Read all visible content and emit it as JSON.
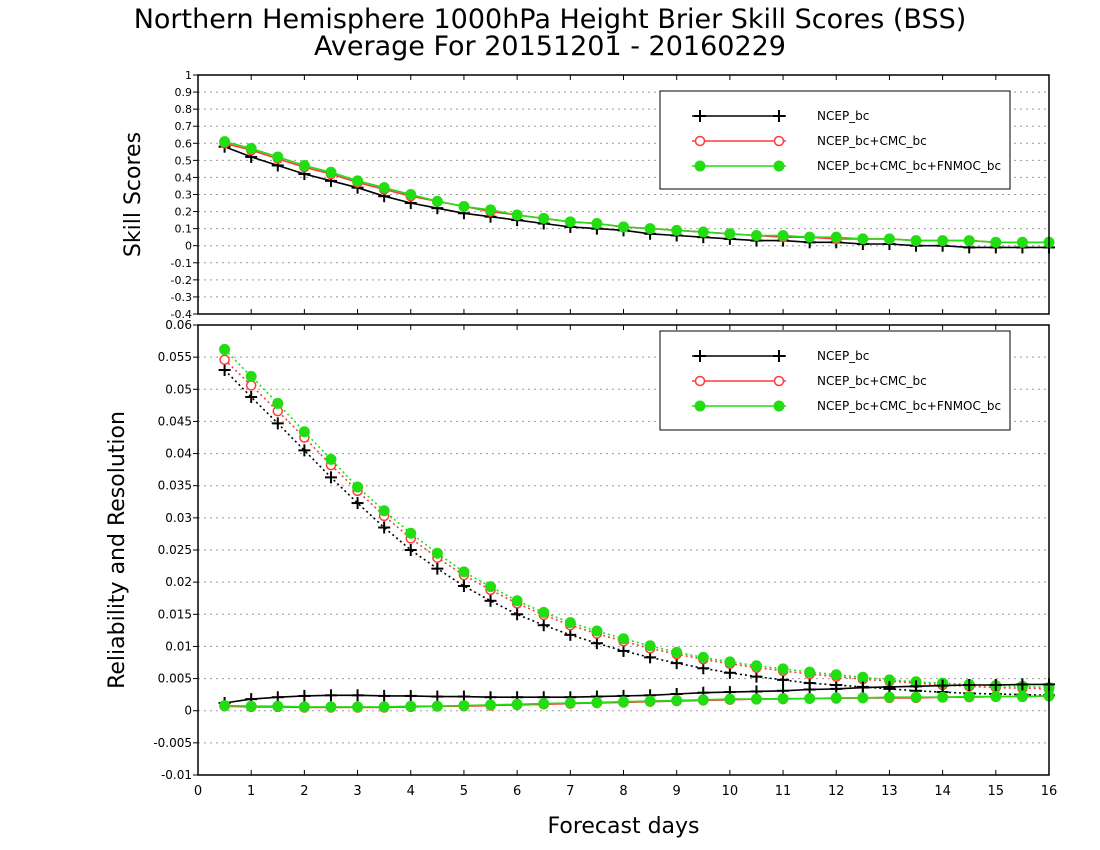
{
  "figure": {
    "title_line1": "Northern Hemisphere 1000hPa Height Brier Skill Scores (BSS)",
    "title_line2": "Average For 20151201 - 20160229",
    "xlabel": "Forecast days"
  },
  "colors": {
    "NCEP_bc": "#000000",
    "NCEP_bc+CMC_bc": "#ff3a3a",
    "NCEP_bc+CMC_bc+FNMOC_bc": "#22dd11"
  },
  "chart_data": [
    {
      "type": "line",
      "ylabel": "Skill Scores",
      "xlim": [
        0,
        16
      ],
      "ylim": [
        -0.4,
        1
      ],
      "xticks": [
        0,
        1,
        2,
        3,
        4,
        5,
        6,
        7,
        8,
        9,
        10,
        11,
        12,
        13,
        14,
        15,
        16
      ],
      "yticks": [
        -0.4,
        -0.3,
        -0.2,
        -0.1,
        0,
        0.1,
        0.2,
        0.3,
        0.4,
        0.5,
        0.6,
        0.7,
        0.8,
        0.9,
        1
      ],
      "ytick_labels": [
        "-0.4",
        "-0.3",
        "-0.2",
        "-0.1",
        "0",
        "0.1",
        "0.2",
        "0.3",
        "0.4",
        "0.5",
        "0.6",
        "0.7",
        "0.8",
        "0.9",
        "1"
      ],
      "grid": true,
      "legend_position": "top-right",
      "x": [
        0.5,
        1,
        1.5,
        2,
        2.5,
        3,
        3.5,
        4,
        4.5,
        5,
        5.5,
        6,
        6.5,
        7,
        7.5,
        8,
        8.5,
        9,
        9.5,
        10,
        10.5,
        11,
        11.5,
        12,
        12.5,
        13,
        13.5,
        14,
        14.5,
        15,
        15.5,
        16
      ],
      "series": [
        {
          "name": "NCEP_bc",
          "style": "solid",
          "marker": "plus",
          "values": [
            0.58,
            0.52,
            0.47,
            0.42,
            0.38,
            0.34,
            0.29,
            0.25,
            0.22,
            0.19,
            0.17,
            0.15,
            0.13,
            0.11,
            0.1,
            0.09,
            0.07,
            0.06,
            0.05,
            0.04,
            0.03,
            0.03,
            0.02,
            0.02,
            0.01,
            0.01,
            0.0,
            0.0,
            -0.01,
            -0.01,
            -0.01,
            -0.01
          ]
        },
        {
          "name": "NCEP_bc+CMC_bc",
          "style": "solid",
          "marker": "open-circle",
          "values": [
            0.6,
            0.56,
            0.51,
            0.46,
            0.42,
            0.37,
            0.33,
            0.29,
            0.26,
            0.23,
            0.2,
            0.18,
            0.16,
            0.14,
            0.13,
            0.11,
            0.1,
            0.09,
            0.08,
            0.07,
            0.06,
            0.05,
            0.05,
            0.04,
            0.04,
            0.04,
            0.03,
            0.03,
            0.03,
            0.02,
            0.02,
            0.02
          ]
        },
        {
          "name": "NCEP_bc+CMC_bc+FNMOC_bc",
          "style": "solid",
          "marker": "filled-circle",
          "values": [
            0.61,
            0.57,
            0.52,
            0.47,
            0.43,
            0.38,
            0.34,
            0.3,
            0.26,
            0.23,
            0.21,
            0.18,
            0.16,
            0.14,
            0.13,
            0.11,
            0.1,
            0.09,
            0.08,
            0.07,
            0.06,
            0.06,
            0.05,
            0.05,
            0.04,
            0.04,
            0.03,
            0.03,
            0.03,
            0.02,
            0.02,
            0.02
          ]
        }
      ]
    },
    {
      "type": "line",
      "ylabel": "Reliability and Resolution",
      "xlim": [
        0,
        16
      ],
      "ylim": [
        -0.01,
        0.06
      ],
      "xticks": [
        0,
        1,
        2,
        3,
        4,
        5,
        6,
        7,
        8,
        9,
        10,
        11,
        12,
        13,
        14,
        15,
        16
      ],
      "yticks": [
        -0.01,
        -0.005,
        0,
        0.005,
        0.01,
        0.015,
        0.02,
        0.025,
        0.03,
        0.035,
        0.04,
        0.045,
        0.05,
        0.055,
        0.06
      ],
      "ytick_labels": [
        "-0.01",
        "-0.005",
        "0",
        "0.005",
        "0.01",
        "0.015",
        "0.02",
        "0.025",
        "0.03",
        "0.035",
        "0.04",
        "0.045",
        "0.05",
        "0.055",
        "0.06"
      ],
      "grid": true,
      "legend_position": "top-right",
      "x": [
        0.5,
        1,
        1.5,
        2,
        2.5,
        3,
        3.5,
        4,
        4.5,
        5,
        5.5,
        6,
        6.5,
        7,
        7.5,
        8,
        8.5,
        9,
        9.5,
        10,
        10.5,
        11,
        11.5,
        12,
        12.5,
        13,
        13.5,
        14,
        14.5,
        15,
        15.5,
        16
      ],
      "series": [
        {
          "name": "NCEP_bc",
          "group": "resolution",
          "style": "dotted",
          "marker": "plus",
          "values": [
            0.053,
            0.0488,
            0.0447,
            0.0405,
            0.0363,
            0.0323,
            0.0285,
            0.025,
            0.0221,
            0.0194,
            0.0171,
            0.015,
            0.0133,
            0.0118,
            0.0105,
            0.0093,
            0.0083,
            0.0074,
            0.0066,
            0.0059,
            0.0053,
            0.0048,
            0.0043,
            0.004,
            0.0037,
            0.0034,
            0.0031,
            0.0029,
            0.0027,
            0.0026,
            0.0025,
            0.0024
          ]
        },
        {
          "name": "NCEP_bc+CMC_bc",
          "group": "resolution",
          "style": "dotted",
          "marker": "open-circle",
          "values": [
            0.0546,
            0.0506,
            0.0466,
            0.0425,
            0.0382,
            0.0342,
            0.0303,
            0.0268,
            0.0238,
            0.0211,
            0.0188,
            0.0167,
            0.0149,
            0.0133,
            0.012,
            0.0108,
            0.0097,
            0.0088,
            0.008,
            0.0073,
            0.0067,
            0.0062,
            0.0057,
            0.0053,
            0.0049,
            0.0046,
            0.0043,
            0.004,
            0.0038,
            0.0036,
            0.0035,
            0.0034
          ]
        },
        {
          "name": "NCEP_bc+CMC_bc+FNMOC_bc",
          "group": "resolution",
          "style": "dotted",
          "marker": "filled-circle",
          "values": [
            0.0562,
            0.052,
            0.0478,
            0.0434,
            0.0391,
            0.0348,
            0.0311,
            0.0276,
            0.0245,
            0.0216,
            0.0193,
            0.0171,
            0.0153,
            0.0137,
            0.0124,
            0.0112,
            0.0101,
            0.0091,
            0.0083,
            0.0076,
            0.007,
            0.0065,
            0.006,
            0.0056,
            0.0052,
            0.0048,
            0.0045,
            0.0043,
            0.0041,
            0.0039,
            0.0038,
            0.0036
          ]
        },
        {
          "name": "NCEP_bc",
          "group": "reliability",
          "style": "solid",
          "marker": "plus",
          "values": [
            0.0012,
            0.0018,
            0.0021,
            0.0023,
            0.0024,
            0.0024,
            0.0023,
            0.0023,
            0.0022,
            0.0022,
            0.0021,
            0.0021,
            0.0021,
            0.0021,
            0.0022,
            0.0023,
            0.0024,
            0.0026,
            0.0028,
            0.0029,
            0.003,
            0.0031,
            0.0033,
            0.0034,
            0.0036,
            0.0037,
            0.0038,
            0.0039,
            0.004,
            0.004,
            0.0041,
            0.0041
          ]
        },
        {
          "name": "NCEP_bc+CMC_bc",
          "group": "reliability",
          "style": "solid",
          "marker": "open-circle",
          "values": [
            0.0007,
            0.0006,
            0.0006,
            0.0005,
            0.0005,
            0.0005,
            0.0005,
            0.0006,
            0.0007,
            0.0007,
            0.0008,
            0.0009,
            0.001,
            0.0011,
            0.0012,
            0.0013,
            0.0014,
            0.0015,
            0.0016,
            0.0017,
            0.0018,
            0.0018,
            0.0019,
            0.0019,
            0.002,
            0.002,
            0.002,
            0.0021,
            0.0021,
            0.0022,
            0.0022,
            0.0023
          ]
        },
        {
          "name": "NCEP_bc+CMC_bc+FNMOC_bc",
          "group": "reliability",
          "style": "solid",
          "marker": "filled-circle",
          "values": [
            0.0008,
            0.0007,
            0.0007,
            0.0006,
            0.0006,
            0.0006,
            0.0006,
            0.0007,
            0.0007,
            0.0008,
            0.0009,
            0.001,
            0.0011,
            0.0012,
            0.0013,
            0.0014,
            0.0015,
            0.0016,
            0.0017,
            0.0018,
            0.0018,
            0.0019,
            0.0019,
            0.002,
            0.002,
            0.0021,
            0.0021,
            0.0021,
            0.0022,
            0.0022,
            0.0022,
            0.0023
          ]
        }
      ]
    }
  ]
}
